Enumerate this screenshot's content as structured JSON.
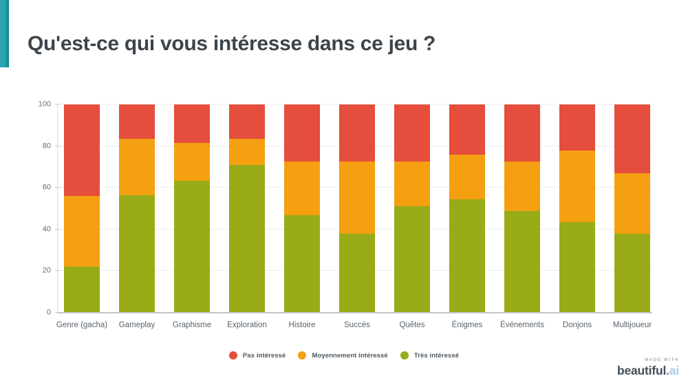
{
  "slide": {
    "title": "Qu'est-ce qui vous intéresse dans ce jeu ?",
    "accent_color_left": "#2aa5ae",
    "accent_color_right": "#0d7f8a"
  },
  "chart_data": {
    "type": "bar",
    "stacked": true,
    "title": "",
    "xlabel": "",
    "ylabel": "",
    "categories": [
      "Genre (gacha)",
      "Gameplay",
      "Graphisme",
      "Exploration",
      "Histoire",
      "Succès",
      "Quêtes",
      "Énigmes",
      "Événements",
      "Donjons",
      "Multijoueur"
    ],
    "series": [
      {
        "name": "Très intéressé",
        "color": "#99ab17",
        "values": [
          22,
          56.5,
          63.5,
          71,
          47,
          38,
          51,
          54.5,
          49,
          43.5,
          38
        ]
      },
      {
        "name": "Moyennement intéressé",
        "color": "#f4a011",
        "values": [
          34,
          27,
          18,
          12.5,
          25.5,
          34.5,
          21.5,
          21.5,
          23.5,
          34.5,
          29
        ]
      },
      {
        "name": "Pas intéressé",
        "color": "#e54d3c",
        "values": [
          44,
          16.5,
          18.5,
          16.5,
          27.5,
          27.5,
          27.5,
          24,
          27.5,
          22,
          33
        ]
      }
    ],
    "ylim": [
      0,
      100
    ],
    "yticks": [
      0,
      20,
      40,
      60,
      80,
      100
    ],
    "grid": true,
    "legend_position": "bottom"
  },
  "legend": {
    "items": [
      {
        "label": "Pas intéressé",
        "color": "#e54d3c"
      },
      {
        "label": "Moyennement intéressé",
        "color": "#f4a011"
      },
      {
        "label": "Très intéressé",
        "color": "#99ab17"
      }
    ]
  },
  "footer": {
    "made_with": "MADE WITH",
    "brand": "beautiful",
    "brand_dot": ".",
    "brand_suffix": "ai"
  }
}
